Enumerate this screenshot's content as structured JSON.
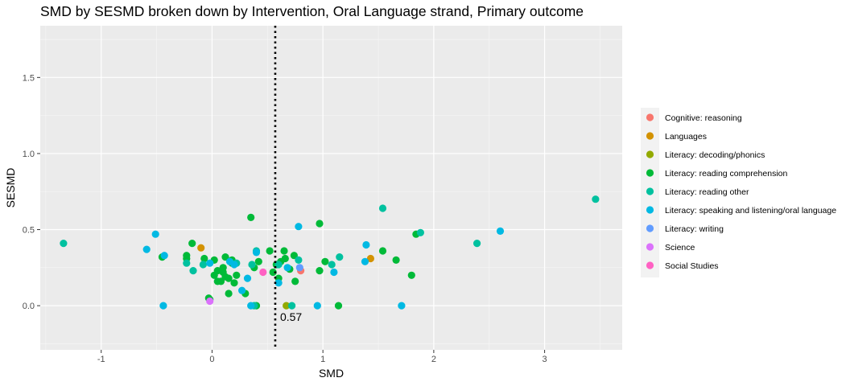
{
  "chart_data": {
    "type": "scatter",
    "title": "SMD by SESMD broken down by Intervention, Oral Language strand, Primary outcome",
    "xlabel": "SMD",
    "ylabel": "SESMD",
    "xlim": [
      -1.55,
      3.7
    ],
    "ylim": [
      -0.29,
      1.84
    ],
    "x_ticks": [
      -1,
      0,
      1,
      2,
      3
    ],
    "x_tick_labels": [
      "-1",
      "0",
      "1",
      "2",
      "3"
    ],
    "y_ticks": [
      0.0,
      0.5,
      1.0,
      1.5
    ],
    "y_tick_labels": [
      "0.0",
      "0.5",
      "1.0",
      "1.5"
    ],
    "grid": true,
    "legend_position": "right",
    "reference_line": {
      "x": 0.57,
      "style": "dotted",
      "label": "0.57"
    },
    "series": [
      {
        "name": "Cognitive: reasoning",
        "color": "#F8766D",
        "points": [
          [
            0.8,
            0.23
          ]
        ]
      },
      {
        "name": "Languages",
        "color": "#D39200",
        "points": [
          [
            -0.1,
            0.38
          ],
          [
            1.43,
            0.31
          ]
        ]
      },
      {
        "name": "Literacy: decoding/phonics",
        "color": "#93AA00",
        "points": [
          [
            0.67,
            0.0
          ]
        ]
      },
      {
        "name": "Literacy: reading comprehension",
        "color": "#00BA38",
        "points": [
          [
            0.35,
            0.58
          ],
          [
            0.97,
            0.54
          ],
          [
            1.84,
            0.47
          ],
          [
            1.54,
            0.36
          ],
          [
            1.66,
            0.3
          ],
          [
            1.8,
            0.2
          ],
          [
            0.52,
            0.36
          ],
          [
            0.65,
            0.36
          ],
          [
            0.74,
            0.33
          ],
          [
            0.66,
            0.31
          ],
          [
            0.62,
            0.29
          ],
          [
            0.58,
            0.27
          ],
          [
            0.7,
            0.24
          ],
          [
            0.55,
            0.22
          ],
          [
            0.6,
            0.18
          ],
          [
            0.75,
            0.16
          ],
          [
            0.42,
            0.29
          ],
          [
            0.38,
            0.25
          ],
          [
            0.97,
            0.23
          ],
          [
            1.02,
            0.29
          ],
          [
            -0.18,
            0.41
          ],
          [
            -0.07,
            0.31
          ],
          [
            -0.23,
            0.33
          ],
          [
            -0.23,
            0.31
          ],
          [
            -0.45,
            0.32
          ],
          [
            0.02,
            0.3
          ],
          [
            0.12,
            0.32
          ],
          [
            0.18,
            0.28
          ],
          [
            0.1,
            0.22
          ],
          [
            0.05,
            0.23
          ],
          [
            0.12,
            0.19
          ],
          [
            0.2,
            0.15
          ],
          [
            0.15,
            0.18
          ],
          [
            0.08,
            0.16
          ],
          [
            0.22,
            0.2
          ],
          [
            0.3,
            0.08
          ],
          [
            0.15,
            0.08
          ],
          [
            -0.03,
            0.05
          ],
          [
            -0.02,
            0.04
          ],
          [
            0.4,
            0.0
          ],
          [
            1.14,
            0.0
          ],
          [
            0.02,
            0.2
          ],
          [
            0.1,
            0.25
          ],
          [
            0.05,
            0.16
          ],
          [
            0.18,
            0.3
          ]
        ]
      },
      {
        "name": "Literacy: reading other",
        "color": "#00C19F",
        "points": [
          [
            -1.34,
            0.41
          ],
          [
            1.54,
            0.64
          ],
          [
            1.88,
            0.48
          ],
          [
            2.39,
            0.41
          ],
          [
            3.46,
            0.7
          ],
          [
            1.15,
            0.32
          ],
          [
            1.08,
            0.27
          ],
          [
            0.4,
            0.36
          ],
          [
            0.36,
            0.27
          ],
          [
            -0.23,
            0.28
          ],
          [
            -0.17,
            0.23
          ],
          [
            -0.08,
            0.27
          ],
          [
            0.22,
            0.28
          ],
          [
            0.72,
            0.0
          ],
          [
            0.38,
            0.0
          ],
          [
            0.6,
            0.27
          ],
          [
            0.78,
            0.3
          ]
        ]
      },
      {
        "name": "Literacy: speaking and listening/oral language",
        "color": "#00B9E3",
        "points": [
          [
            0.78,
            0.52
          ],
          [
            -0.51,
            0.47
          ],
          [
            -0.59,
            0.37
          ],
          [
            -0.43,
            0.33
          ],
          [
            1.39,
            0.4
          ],
          [
            2.6,
            0.49
          ],
          [
            1.38,
            0.29
          ],
          [
            1.1,
            0.22
          ],
          [
            -0.02,
            0.28
          ],
          [
            0.16,
            0.29
          ],
          [
            0.2,
            0.27
          ],
          [
            0.6,
            0.15
          ],
          [
            0.32,
            0.18
          ],
          [
            0.27,
            0.1
          ],
          [
            0.68,
            0.25
          ],
          [
            -0.44,
            0.0
          ],
          [
            0.35,
            0.0
          ],
          [
            0.95,
            0.0
          ],
          [
            1.71,
            0.0
          ],
          [
            0.4,
            0.35
          ]
        ]
      },
      {
        "name": "Literacy: writing",
        "color": "#619CFF",
        "points": [
          [
            0.79,
            0.25
          ]
        ]
      },
      {
        "name": "Science",
        "color": "#DB72FB",
        "points": [
          [
            -0.02,
            0.03
          ]
        ]
      },
      {
        "name": "Social Studies",
        "color": "#FF61C3",
        "points": [
          [
            0.46,
            0.22
          ]
        ]
      }
    ]
  }
}
